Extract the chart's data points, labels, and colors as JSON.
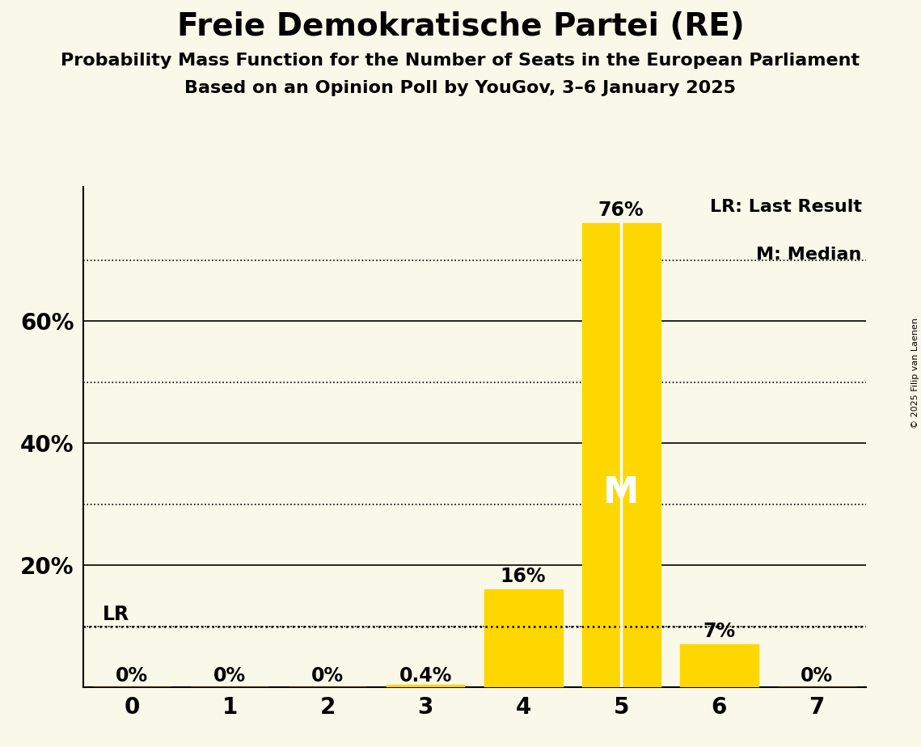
{
  "title": "Freie Demokratische Partei (RE)",
  "subtitle1": "Probability Mass Function for the Number of Seats in the European Parliament",
  "subtitle2": "Based on an Opinion Poll by YouGov, 3–6 January 2025",
  "copyright": "© 2025 Filip van Laenen",
  "seats": [
    0,
    1,
    2,
    3,
    4,
    5,
    6,
    7
  ],
  "probabilities": [
    0.0,
    0.0,
    0.0,
    0.004,
    0.16,
    0.76,
    0.07,
    0.0
  ],
  "bar_color": "#FFD700",
  "background_color": "#FAF8E8",
  "median_seat": 5,
  "lr_value": 0.1,
  "legend_lr": "LR: Last Result",
  "legend_m": "M: Median",
  "bar_labels": [
    "0%",
    "0%",
    "0%",
    "0.4%",
    "16%",
    "76%",
    "7%",
    "0%"
  ],
  "yticks": [
    0.2,
    0.4,
    0.6
  ],
  "ytick_labels": [
    "20%",
    "40%",
    "60%"
  ],
  "dotted_grid": [
    0.1,
    0.3,
    0.5,
    0.7
  ],
  "solid_grid": [
    0.2,
    0.4,
    0.6
  ],
  "ylim": [
    0,
    0.82
  ],
  "xlim": [
    -0.5,
    7.5
  ]
}
